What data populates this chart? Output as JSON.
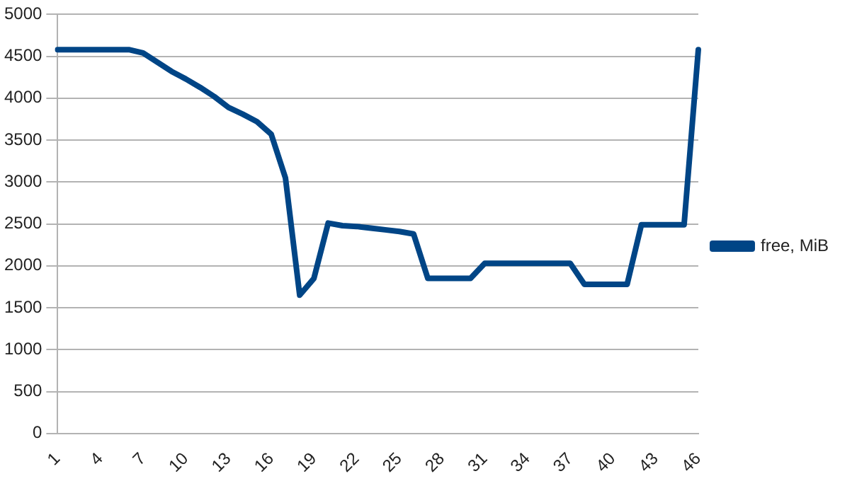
{
  "chart_data": {
    "type": "line",
    "categories": [
      "1",
      null,
      null,
      "4",
      null,
      null,
      "7",
      null,
      null,
      "10",
      null,
      null,
      "13",
      null,
      null,
      "16",
      null,
      null,
      "19",
      null,
      null,
      "22",
      null,
      null,
      "25",
      null,
      null,
      "28",
      null,
      null,
      "31",
      null,
      null,
      "34",
      null,
      null,
      "37",
      null,
      null,
      "40",
      null,
      null,
      "43",
      null,
      null,
      "46"
    ],
    "series": [
      {
        "name": "free, MiB",
        "color": "#004586",
        "values": [
          4580,
          4580,
          4580,
          4580,
          4580,
          4580,
          4540,
          4430,
          4320,
          4230,
          4130,
          4020,
          3890,
          3810,
          3720,
          3570,
          3050,
          1650,
          1850,
          2510,
          2480,
          2470,
          2450,
          2430,
          2410,
          2380,
          1850,
          1850,
          1850,
          1850,
          2030,
          2030,
          2030,
          2030,
          2030,
          2030,
          2030,
          1780,
          1780,
          1780,
          1780,
          2490,
          2490,
          2490,
          2490,
          4580
        ]
      }
    ],
    "ylim": [
      0,
      5000
    ],
    "yticks": [
      0,
      500,
      1000,
      1500,
      2000,
      2500,
      3000,
      3500,
      4000,
      4500,
      5000
    ],
    "grid": "y",
    "legend": "right",
    "marker": "none",
    "line_style": "solid"
  }
}
